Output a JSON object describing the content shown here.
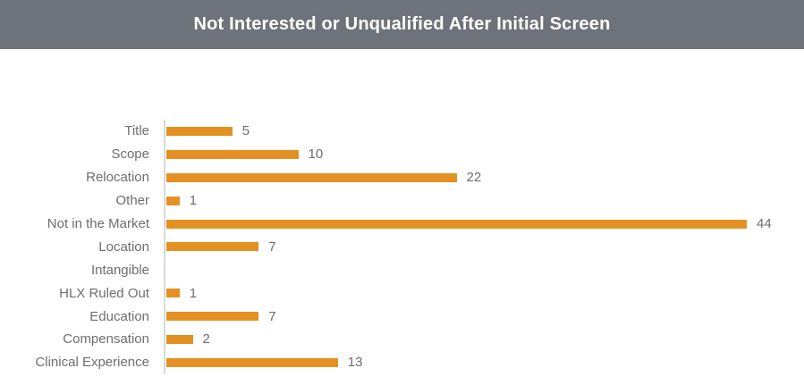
{
  "header": {
    "title": "Not Interested or Unqualified After Initial Screen",
    "background_color": "#6E727A",
    "text_color": "#FFFFFF"
  },
  "chart_data": {
    "type": "bar",
    "orientation": "horizontal",
    "title": "Not Interested or Unqualified After Initial Screen",
    "categories": [
      "Title",
      "Scope",
      "Relocation",
      "Other",
      "Not in the Market",
      "Location",
      "Intangible",
      "HLX Ruled Out",
      "Education",
      "Compensation",
      "Clinical Experience"
    ],
    "values": [
      5,
      10,
      22,
      1,
      44,
      7,
      0,
      1,
      7,
      2,
      13
    ],
    "value_labels_shown": [
      "5",
      "10",
      "22",
      "1",
      "44",
      "7",
      "",
      "1",
      "7",
      "2",
      "13"
    ],
    "xlabel": "",
    "ylabel": "",
    "xlim": [
      0,
      44
    ],
    "grid": false,
    "legend": false,
    "bar_color": "#E29122",
    "label_color": "#6E6E70",
    "axis_line_color": "#D9D9D9"
  }
}
